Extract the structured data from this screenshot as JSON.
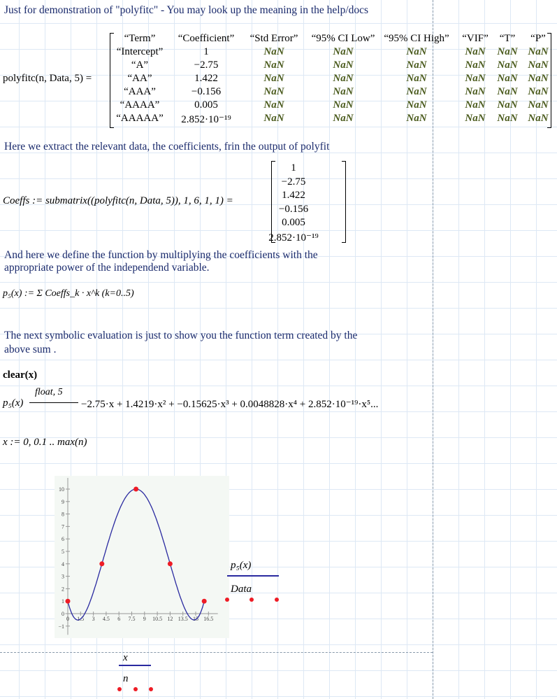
{
  "texts": {
    "t1": "Just for demonstration of \"polyfitc\" - You may look up the meaning in the help/docs",
    "t2": "Here we extract the relevant data, the coefficients, frin the output of polyfit",
    "t3a": "And here we define the function by multiplying the coefficients with the",
    "t3b": "appropriate power of the independend variable.",
    "t4a": "The next symbolic evaluation is just to show you the function term created by the",
    "t4b": "above sum ."
  },
  "polyfitc": {
    "lhs": "polyfitc(n, Data, 5) =",
    "headers": [
      "“Term”",
      "“Coefficient”",
      "“Std Error”",
      "“95% CI Low”",
      "“95% CI High”",
      "“VIF”",
      "“T”",
      "“P”"
    ],
    "rows": [
      [
        "“Intercept”",
        "1",
        "NaN",
        "NaN",
        "NaN",
        "NaN",
        "NaN",
        "NaN"
      ],
      [
        "“A”",
        "−2.75",
        "NaN",
        "NaN",
        "NaN",
        "NaN",
        "NaN",
        "NaN"
      ],
      [
        "“AA”",
        "1.422",
        "NaN",
        "NaN",
        "NaN",
        "NaN",
        "NaN",
        "NaN"
      ],
      [
        "“AAA”",
        "−0.156",
        "NaN",
        "NaN",
        "NaN",
        "NaN",
        "NaN",
        "NaN"
      ],
      [
        "“AAAA”",
        "0.005",
        "NaN",
        "NaN",
        "NaN",
        "NaN",
        "NaN",
        "NaN"
      ],
      [
        "“AAAAA”",
        "2.852·10⁻¹⁹",
        "NaN",
        "NaN",
        "NaN",
        "NaN",
        "NaN",
        "NaN"
      ]
    ]
  },
  "coeffs": {
    "lhs": "Coeffs := submatrix((polyfitc(n, Data, 5)), 1, 6, 1, 1) =",
    "values": [
      "1",
      "−2.75",
      "1.422",
      "−0.156",
      "0.005",
      "2.852·10⁻¹⁹"
    ]
  },
  "p5_def": "p₅(x) := Σ Coeffs_k · x^k  (k=0..5)",
  "clear": "clear(x)",
  "symbolic": {
    "lhs": "p₅(x)",
    "keyword": "float, 5",
    "result": "−2.75·x + 1.4219·x² + −0.15625·x³ + 0.0048828·x⁴ + 2.852·10⁻¹⁹·x⁵..."
  },
  "range_def": "x := 0, 0.1 .. max(n)",
  "chart_data": {
    "type": "line",
    "series": [
      {
        "name": "p₅(x)",
        "kind": "line",
        "color": "#2a2aa0",
        "coefficients": [
          1,
          -2.75,
          1.4219,
          -0.15625,
          0.0048828
        ],
        "x_range": [
          0,
          16
        ]
      },
      {
        "name": "Data",
        "kind": "scatter",
        "color": "#ee1c25",
        "x": [
          0,
          4,
          8,
          12,
          16
        ],
        "y": [
          1,
          4,
          10,
          4,
          1
        ]
      }
    ],
    "x_ticks": [
      "0",
      "1.5",
      "3",
      "4.5",
      "6",
      "7.5",
      "9",
      "10.5",
      "12",
      "13.5",
      "15",
      "16.5"
    ],
    "y_ticks": [
      "−1",
      "0",
      "1",
      "2",
      "3",
      "4",
      "5",
      "6",
      "7",
      "8",
      "9",
      "10"
    ],
    "legend_y": [
      "p₅(x)",
      "Data"
    ],
    "legend_x": "x",
    "legend_x2": "n"
  }
}
